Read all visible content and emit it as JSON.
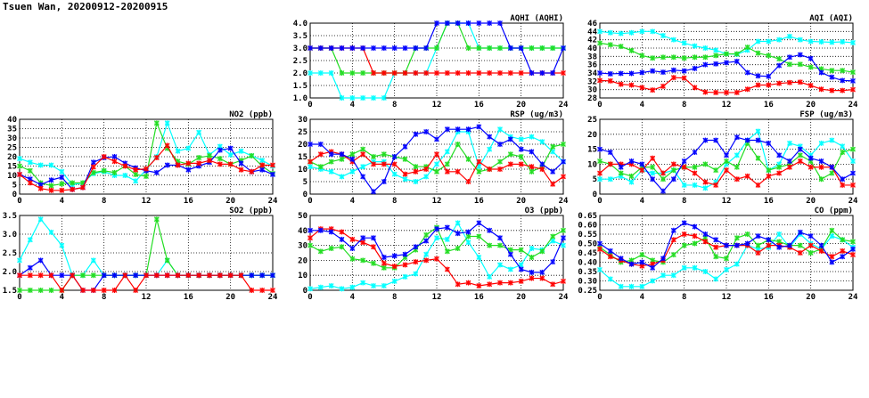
{
  "page_title": "Tsuen Wan, 20200912-20200915",
  "chart_data": [
    {
      "type": "line",
      "title": "AQHI (AQHI)",
      "xlim": [
        0,
        24
      ],
      "ylim": [
        1.0,
        4.0
      ],
      "xticks": [
        "0",
        "4",
        "8",
        "12",
        "16",
        "20",
        "24"
      ],
      "yticks": [
        "1.0",
        "1.5",
        "2.0",
        "2.5",
        "3.0",
        "3.5",
        "4.0"
      ],
      "series": [
        {
          "color": "#00ffff",
          "values": [
            2,
            2,
            2,
            1,
            1,
            1,
            1,
            1,
            2,
            2,
            2,
            2,
            3,
            4,
            4,
            4,
            3,
            3,
            3,
            3,
            3,
            3,
            3,
            3,
            3
          ]
        },
        {
          "color": "#22dd22",
          "values": [
            3,
            3,
            3,
            2,
            2,
            2,
            2,
            2,
            2,
            2,
            3,
            3,
            3,
            4,
            4,
            3,
            3,
            3,
            3,
            3,
            3,
            3,
            3,
            3,
            3
          ]
        },
        {
          "color": "#ff0000",
          "values": [
            3,
            3,
            3,
            3,
            3,
            3,
            2,
            2,
            2,
            2,
            2,
            2,
            2,
            2,
            2,
            2,
            2,
            2,
            2,
            2,
            2,
            2,
            2,
            2,
            2
          ]
        },
        {
          "color": "#0000ff",
          "values": [
            3,
            3,
            3,
            3,
            3,
            3,
            3,
            3,
            3,
            3,
            3,
            3,
            4,
            4,
            4,
            4,
            4,
            4,
            4,
            3,
            3,
            2,
            2,
            2,
            3
          ]
        }
      ]
    },
    {
      "type": "line",
      "title": "AQI (AQI)",
      "xlim": [
        0,
        24
      ],
      "ylim": [
        28,
        46
      ],
      "xticks": [
        "0",
        "4",
        "8",
        "12",
        "16",
        "20",
        "24"
      ],
      "yticks": [
        "28",
        "30",
        "32",
        "34",
        "36",
        "38",
        "40",
        "42",
        "44",
        "46"
      ],
      "series": [
        {
          "color": "#00ffff",
          "values": [
            44,
            43.7,
            43.5,
            43.7,
            44,
            44,
            43,
            42,
            41.2,
            40.5,
            40,
            39.5,
            38.6,
            38.5,
            39.5,
            41.6,
            41.6,
            42,
            42.8,
            42,
            41.6,
            41.5,
            41.4,
            41.5,
            41.3
          ]
        },
        {
          "color": "#22dd22",
          "values": [
            41.2,
            40.8,
            40.4,
            39.4,
            38.2,
            37.6,
            37.8,
            37.8,
            37.6,
            37.8,
            37.8,
            38.2,
            38.6,
            38.6,
            40.2,
            38.8,
            38.2,
            37.4,
            36.1,
            36.1,
            35.4,
            35,
            34.6,
            34.6,
            34.2
          ]
        },
        {
          "color": "#0000ff",
          "values": [
            34,
            33.8,
            33.9,
            33.9,
            34.1,
            34.5,
            34.2,
            34.7,
            34.5,
            35.1,
            36,
            36.2,
            36.5,
            36.8,
            34.1,
            33.3,
            33.2,
            35.8,
            37.8,
            38.4,
            37.5,
            34.1,
            33,
            32.2,
            32.1
          ]
        },
        {
          "color": "#ff0000",
          "values": [
            32.2,
            32.1,
            31.3,
            31.1,
            30.5,
            29.9,
            30.8,
            32.9,
            32.8,
            30.5,
            29.4,
            29.3,
            29.3,
            29.3,
            30.1,
            31.1,
            31.1,
            31.5,
            31.7,
            31.8,
            31,
            30.1,
            29.8,
            29.8,
            30
          ]
        }
      ]
    },
    {
      "type": "line",
      "title": "NO2 (ppb)",
      "xlim": [
        0,
        24
      ],
      "ylim": [
        0,
        40
      ],
      "xticks": [
        "0",
        "4",
        "8",
        "12",
        "16",
        "20",
        "24"
      ],
      "yticks": [
        "0",
        "5",
        "10",
        "15",
        "20",
        "25",
        "30",
        "35",
        "40"
      ],
      "series": [
        {
          "color": "#00ffff",
          "values": [
            19,
            17,
            15.5,
            15.5,
            12,
            5,
            6,
            11,
            12,
            10,
            10,
            7,
            13,
            20,
            38,
            23,
            24.5,
            33,
            21,
            25.5,
            21,
            23,
            20.5,
            18,
            15
          ]
        },
        {
          "color": "#22dd22",
          "values": [
            15,
            12.5,
            6,
            4.5,
            5.5,
            6,
            6,
            11.5,
            12.5,
            11.5,
            15,
            10.5,
            9.5,
            38,
            24.5,
            17.5,
            16,
            19.5,
            20.5,
            19,
            16,
            18,
            20.5,
            15,
            11
          ]
        },
        {
          "color": "#0000ff",
          "values": [
            10.5,
            8,
            5,
            7.5,
            9,
            2.5,
            3.5,
            17,
            19.5,
            20,
            16.5,
            14,
            12.5,
            11.5,
            15.5,
            15.5,
            13,
            15,
            17,
            23.5,
            24.5,
            16.5,
            12,
            13,
            10.5
          ]
        },
        {
          "color": "#ff0000",
          "values": [
            10.5,
            6,
            3,
            2,
            2,
            2.5,
            3.5,
            14.5,
            20,
            17.5,
            15,
            13,
            13.5,
            19.5,
            26,
            15.5,
            16.5,
            16.5,
            18,
            16,
            16,
            13,
            12,
            15.5,
            15.5
          ]
        }
      ]
    },
    {
      "type": "line",
      "title": "RSP (ug/m3)",
      "xlim": [
        0,
        24
      ],
      "ylim": [
        0,
        30
      ],
      "xticks": [
        "0",
        "4",
        "8",
        "12",
        "16",
        "20",
        "24"
      ],
      "yticks": [
        "0",
        "5",
        "10",
        "15",
        "20",
        "25",
        "30"
      ],
      "series": [
        {
          "color": "#00ffff",
          "values": [
            11,
            10,
            9,
            7,
            9,
            11,
            13,
            13,
            8,
            6,
            5,
            7,
            12,
            17,
            25,
            25,
            11,
            18,
            26,
            23,
            22,
            23,
            21,
            17,
            13
          ]
        },
        {
          "color": "#22dd22",
          "values": [
            13,
            11,
            13,
            14,
            16,
            18,
            15,
            16,
            15,
            14,
            11,
            11,
            9,
            12,
            20,
            14,
            9,
            10,
            13,
            16,
            15,
            9,
            11,
            19,
            20
          ]
        },
        {
          "color": "#ff0000",
          "values": [
            13,
            16,
            17,
            16,
            13,
            16,
            12,
            12,
            12,
            8,
            9,
            10,
            16,
            9,
            9,
            5,
            13,
            10,
            10,
            12,
            12,
            11,
            10,
            4,
            7
          ]
        },
        {
          "color": "#0000ff",
          "values": [
            20,
            20,
            16,
            16,
            14,
            7,
            1,
            5,
            15,
            19,
            24,
            25,
            22,
            26,
            26,
            26,
            27,
            23,
            20,
            22,
            18,
            17,
            12,
            9,
            13
          ]
        }
      ]
    },
    {
      "type": "line",
      "title": "FSP (ug/m3)",
      "xlim": [
        0,
        24
      ],
      "ylim": [
        0,
        25
      ],
      "xticks": [
        "0",
        "4",
        "8",
        "12",
        "16",
        "20",
        "24"
      ],
      "yticks": [
        "0",
        "5",
        "10",
        "15",
        "20",
        "25"
      ],
      "series": [
        {
          "color": "#00ffff",
          "values": [
            5,
            5,
            6,
            4,
            8,
            7,
            7,
            8,
            3,
            3,
            2,
            4,
            10,
            13,
            18,
            21,
            8,
            10,
            17,
            16,
            13,
            17,
            18,
            16,
            11
          ]
        },
        {
          "color": "#22dd22",
          "values": [
            11,
            10,
            7,
            6,
            9,
            9,
            5,
            8,
            9,
            9,
            10,
            8,
            11,
            9,
            17,
            12,
            8,
            9,
            10,
            13,
            11,
            5,
            7,
            14,
            15
          ]
        },
        {
          "color": "#ff0000",
          "values": [
            7,
            10,
            10,
            10,
            8,
            12,
            7,
            10,
            9,
            7,
            4,
            3,
            8,
            5,
            6,
            3,
            6,
            7,
            9,
            11,
            9,
            9,
            9,
            3,
            3
          ]
        },
        {
          "color": "#0000ff",
          "values": [
            15,
            14,
            9,
            11,
            10,
            5,
            1,
            5,
            11,
            14,
            18,
            18,
            13,
            19,
            18,
            18,
            17,
            13,
            11,
            15,
            12,
            11,
            9,
            5,
            7
          ]
        }
      ]
    },
    {
      "type": "line",
      "title": "SO2 (ppb)",
      "xlim": [
        0,
        24
      ],
      "ylim": [
        1.5,
        3.5
      ],
      "xticks": [
        "0",
        "4",
        "8",
        "12",
        "16",
        "20",
        "24"
      ],
      "yticks": [
        "1.5",
        "2.0",
        "2.5",
        "3.0",
        "3.5"
      ],
      "series": [
        {
          "color": "#00ffff",
          "values": [
            2.3,
            2.85,
            3.4,
            3.05,
            2.7,
            1.9,
            1.9,
            2.3,
            1.9,
            1.9,
            1.9,
            1.9,
            1.9,
            1.9,
            2.3,
            1.9,
            1.9,
            1.9,
            1.9,
            1.9,
            1.9,
            1.9,
            1.9,
            1.9,
            1.9
          ]
        },
        {
          "color": "#22dd22",
          "values": [
            1.5,
            1.5,
            1.5,
            1.5,
            1.5,
            1.9,
            1.9,
            1.9,
            1.9,
            1.9,
            1.9,
            1.9,
            1.9,
            3.4,
            2.3,
            1.9,
            1.9,
            1.9,
            1.9,
            1.9,
            1.9,
            1.9,
            1.9,
            1.9,
            1.9
          ]
        },
        {
          "color": "#0000ff",
          "values": [
            1.9,
            2.1,
            2.3,
            1.9,
            1.9,
            1.9,
            1.5,
            1.5,
            1.9,
            1.9,
            1.9,
            1.9,
            1.9,
            1.9,
            1.9,
            1.9,
            1.9,
            1.9,
            1.9,
            1.9,
            1.9,
            1.9,
            1.9,
            1.9,
            1.9
          ]
        },
        {
          "color": "#ff0000",
          "values": [
            1.9,
            1.9,
            1.9,
            1.9,
            1.5,
            1.9,
            1.5,
            1.5,
            1.5,
            1.5,
            1.9,
            1.5,
            1.9,
            1.9,
            1.9,
            1.9,
            1.9,
            1.9,
            1.9,
            1.9,
            1.9,
            1.9,
            1.5,
            1.5,
            1.5
          ]
        }
      ]
    },
    {
      "type": "line",
      "title": "O3 (ppb)",
      "xlim": [
        0,
        24
      ],
      "ylim": [
        0,
        50
      ],
      "xticks": [
        "0",
        "4",
        "8",
        "12",
        "16",
        "20",
        "24"
      ],
      "yticks": [
        "0",
        "10",
        "20",
        "30",
        "40",
        "50"
      ],
      "series": [
        {
          "color": "#00ffff",
          "values": [
            1,
            2,
            3,
            1,
            2,
            5,
            3,
            3,
            6,
            9,
            11,
            24,
            35,
            34,
            45,
            32,
            22,
            9,
            17,
            14,
            17,
            28,
            27,
            33,
            30
          ]
        },
        {
          "color": "#22dd22",
          "values": [
            30,
            26,
            28,
            29,
            21,
            20,
            18,
            15,
            15,
            22,
            27,
            37,
            42,
            26,
            28,
            36,
            36,
            30,
            30,
            27,
            27,
            22,
            26,
            36,
            40
          ]
        },
        {
          "color": "#ff0000",
          "values": [
            35,
            41,
            41,
            39,
            34,
            32,
            29,
            18,
            16,
            17,
            19,
            20,
            21,
            14,
            4,
            5,
            3,
            4,
            5,
            5,
            6,
            8,
            8,
            4,
            6
          ]
        },
        {
          "color": "#0000ff",
          "values": [
            40,
            40,
            39,
            34,
            28,
            35,
            35,
            22,
            23,
            24,
            29,
            33,
            41,
            42,
            38,
            39,
            45,
            40,
            35,
            24,
            14,
            12,
            12,
            19,
            35
          ]
        }
      ]
    },
    {
      "type": "line",
      "title": "CO (ppm)",
      "xlim": [
        0,
        24
      ],
      "ylim": [
        0.25,
        0.65
      ],
      "xticks": [
        "0",
        "4",
        "8",
        "12",
        "16",
        "20",
        "24"
      ],
      "yticks": [
        "0.25",
        "0.30",
        "0.35",
        "0.40",
        "0.45",
        "0.50",
        "0.55",
        "0.60",
        "0.65"
      ],
      "series": [
        {
          "color": "#00ffff",
          "values": [
            0.36,
            0.31,
            0.27,
            0.27,
            0.27,
            0.3,
            0.33,
            0.33,
            0.37,
            0.37,
            0.35,
            0.31,
            0.36,
            0.39,
            0.49,
            0.47,
            0.48,
            0.55,
            0.48,
            0.55,
            0.5,
            0.47,
            0.54,
            0.52,
            0.48
          ]
        },
        {
          "color": "#22dd22",
          "values": [
            0.48,
            0.44,
            0.4,
            0.41,
            0.44,
            0.41,
            0.4,
            0.44,
            0.49,
            0.5,
            0.53,
            0.43,
            0.42,
            0.53,
            0.55,
            0.49,
            0.52,
            0.51,
            0.49,
            0.49,
            0.45,
            0.47,
            0.57,
            0.52,
            0.51
          ]
        },
        {
          "color": "#ff0000",
          "values": [
            0.47,
            0.43,
            0.41,
            0.39,
            0.38,
            0.39,
            0.41,
            0.52,
            0.55,
            0.54,
            0.51,
            0.48,
            0.49,
            0.49,
            0.49,
            0.45,
            0.49,
            0.49,
            0.48,
            0.45,
            0.49,
            0.46,
            0.43,
            0.46,
            0.44
          ]
        },
        {
          "color": "#0000ff",
          "values": [
            0.5,
            0.46,
            0.42,
            0.39,
            0.4,
            0.37,
            0.42,
            0.57,
            0.61,
            0.59,
            0.55,
            0.52,
            0.49,
            0.49,
            0.5,
            0.54,
            0.52,
            0.48,
            0.49,
            0.56,
            0.54,
            0.49,
            0.4,
            0.43,
            0.47
          ]
        }
      ]
    }
  ]
}
